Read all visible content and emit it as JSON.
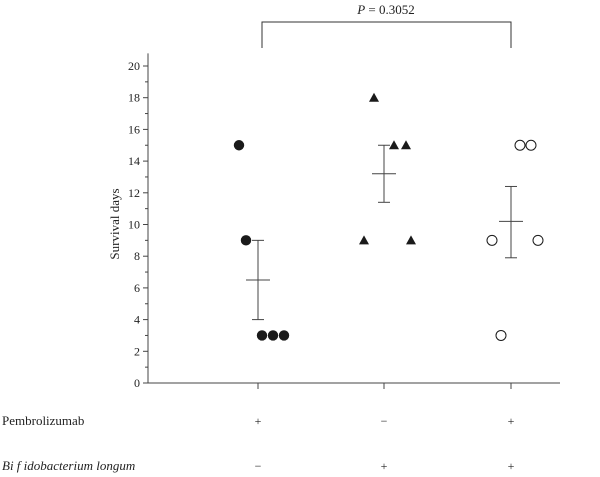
{
  "chart_data": {
    "type": "scatter",
    "title": "",
    "ylabel": "Survival days",
    "xlabel": "",
    "ylim": [
      0,
      20
    ],
    "yticks": [
      "0",
      "2",
      "4",
      "6",
      "8",
      "10",
      "12",
      "14",
      "16",
      "18",
      "20"
    ],
    "grid": false,
    "annotation": {
      "label_italic": "P",
      "label_rest": " = 0.3052",
      "between_groups": [
        0,
        2
      ]
    },
    "groups": [
      {
        "marker": "filled-circle",
        "values": [
          15,
          9,
          3,
          3,
          3
        ],
        "mean": 6.5,
        "sem_low": 4.0,
        "sem_high": 9.0
      },
      {
        "marker": "filled-triangle",
        "values": [
          18,
          9,
          15,
          15,
          9
        ],
        "mean": 13.2,
        "sem_low": 11.4,
        "sem_high": 15.0
      },
      {
        "marker": "open-circle",
        "values": [
          9,
          15,
          15,
          9,
          3
        ],
        "mean": 10.2,
        "sem_low": 7.9,
        "sem_high": 12.4
      }
    ],
    "conditions": [
      {
        "label": "Pembrolizumab",
        "italic": false,
        "signs": [
          "+",
          "−",
          "+"
        ]
      },
      {
        "label": "Bifidobacterium longum",
        "label_parts": [
          "Bi f idobacterium longum"
        ],
        "italic": true,
        "signs": [
          "−",
          "+",
          "+"
        ]
      }
    ],
    "colors": {
      "marker": "#1a1a1a",
      "axis": "#444444",
      "error_bar": "#444444"
    }
  }
}
